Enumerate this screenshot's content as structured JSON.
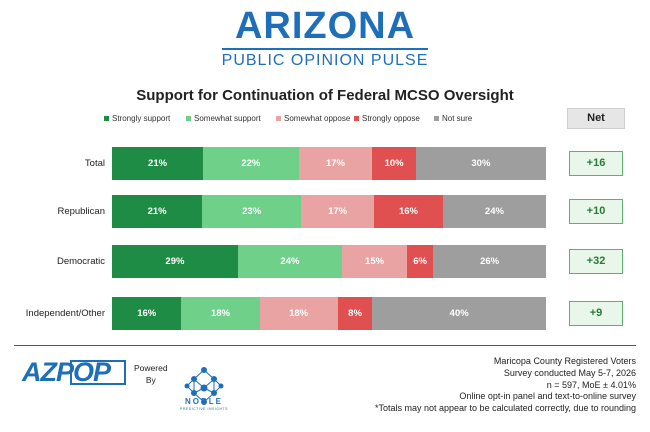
{
  "brand": {
    "title": "ARIZONA",
    "subtitle": "PUBLIC OPINION PULSE"
  },
  "chart_data": {
    "type": "bar",
    "orientation": "horizontal",
    "stacked": true,
    "title": "Support for Continuation of Federal MCSO Oversight",
    "legend_position": "top",
    "categories": [
      "Total",
      "Republican",
      "Democratic",
      "Independent/Other"
    ],
    "series": [
      {
        "name": "Strongly support",
        "color": "#1e8c45",
        "values": [
          21,
          21,
          29,
          16
        ]
      },
      {
        "name": "Somewhat support",
        "color": "#6fd08a",
        "values": [
          22,
          23,
          24,
          18
        ]
      },
      {
        "name": "Somewhat oppose",
        "color": "#eaa3a3",
        "values": [
          17,
          17,
          15,
          18
        ]
      },
      {
        "name": "Strongly oppose",
        "color": "#e05050",
        "values": [
          10,
          16,
          6,
          8
        ]
      },
      {
        "name": "Not sure",
        "color": "#9e9e9e",
        "values": [
          30,
          24,
          26,
          40
        ]
      }
    ],
    "net_header": "Net",
    "net_values": [
      "+16",
      "+10",
      "+32",
      "+9"
    ]
  },
  "footer": {
    "logo_text": "AZPOP",
    "powered_by": [
      "Powered",
      "By"
    ],
    "partner_name": "NOBLE",
    "partner_tagline": "PREDICTIVE INSIGHTS",
    "notes": [
      "Maricopa County Registered Voters",
      "Survey conducted May 5-7, 2026",
      "n = 597, MoE ± 4.01%",
      "Online opt-in panel and text-to-online survey",
      "*Totals may not appear to be calculated correctly, due to rounding"
    ]
  }
}
